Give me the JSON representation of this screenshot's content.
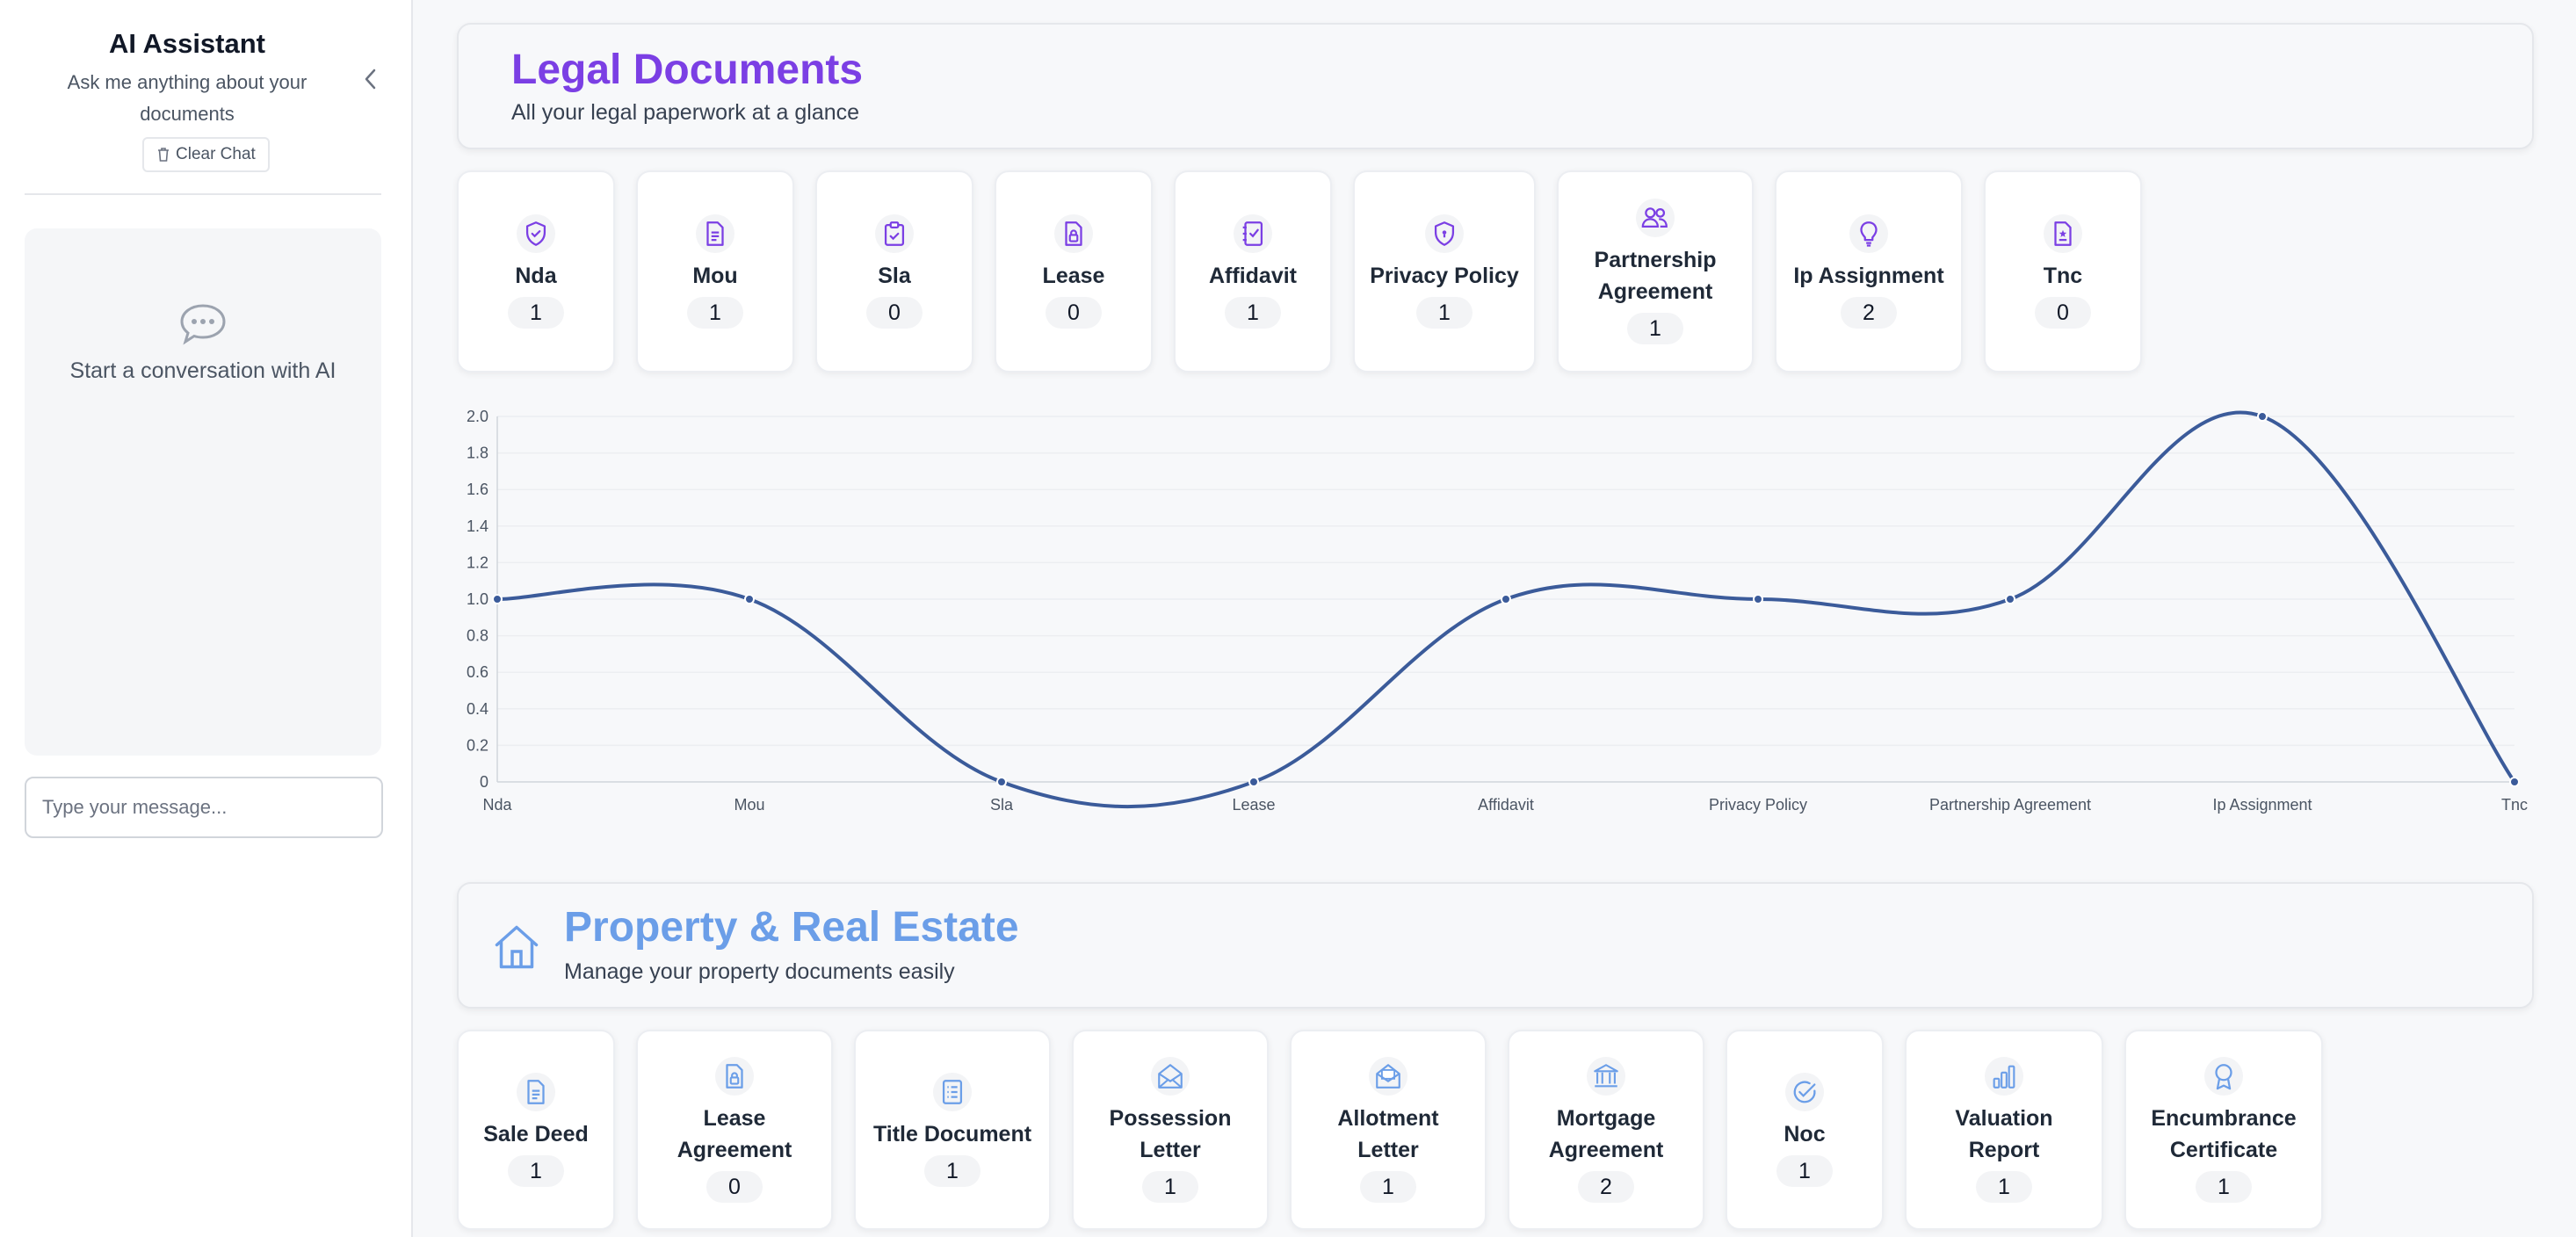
{
  "sidebar": {
    "title": "AI Assistant",
    "subtitle": "Ask me anything about your documents",
    "clear_label": "Clear Chat",
    "empty_state": "Start a conversation with AI",
    "input_placeholder": "Type your message..."
  },
  "legal": {
    "title": "Legal Documents",
    "subtitle": "All your legal paperwork at a glance",
    "accent": "#7b3fe4",
    "cards": [
      {
        "label": "Nda",
        "count": "1",
        "icon": "shield-check-icon"
      },
      {
        "label": "Mou",
        "count": "1",
        "icon": "document-text-icon"
      },
      {
        "label": "Sla",
        "count": "0",
        "icon": "clipboard-check-icon"
      },
      {
        "label": "Lease",
        "count": "0",
        "icon": "document-lock-icon"
      },
      {
        "label": "Affidavit",
        "count": "1",
        "icon": "notebook-check-icon"
      },
      {
        "label": "Privacy Policy",
        "count": "1",
        "icon": "shield-lock-icon"
      },
      {
        "label": "Partnership Agreement",
        "count": "1",
        "icon": "users-icon"
      },
      {
        "label": "Ip Assignment",
        "count": "2",
        "icon": "lightbulb-icon"
      },
      {
        "label": "Tnc",
        "count": "0",
        "icon": "document-star-icon"
      }
    ]
  },
  "chart_data": {
    "type": "line",
    "categories": [
      "Nda",
      "Mou",
      "Sla",
      "Lease",
      "Affidavit",
      "Privacy Policy",
      "Partnership Agreement",
      "Ip Assignment",
      "Tnc"
    ],
    "series": [
      {
        "values": [
          1,
          1,
          0,
          0,
          1,
          1,
          1,
          2,
          0
        ]
      }
    ],
    "yticks": [
      "0",
      "0.2",
      "0.4",
      "0.6",
      "0.8",
      "1.0",
      "1.2",
      "1.4",
      "1.6",
      "1.8",
      "2.0"
    ],
    "ylim": [
      0,
      2
    ],
    "grid": true,
    "color": "#3b5b9a"
  },
  "property": {
    "title": "Property & Real Estate",
    "subtitle": "Manage your property documents easily",
    "accent": "#6b9ee8",
    "icon": "house-icon",
    "cards": [
      {
        "label": "Sale Deed",
        "count": "1",
        "icon": "document-text-icon"
      },
      {
        "label": "Lease Agreement",
        "count": "0",
        "icon": "document-lock-icon"
      },
      {
        "label": "Title Document",
        "count": "1",
        "icon": "list-document-icon"
      },
      {
        "label": "Possession Letter",
        "count": "1",
        "icon": "envelope-open-icon"
      },
      {
        "label": "Allotment Letter",
        "count": "1",
        "icon": "envelope-letter-icon"
      },
      {
        "label": "Mortgage Agreement",
        "count": "2",
        "icon": "bank-icon"
      },
      {
        "label": "Noc",
        "count": "1",
        "icon": "check-circle-icon"
      },
      {
        "label": "Valuation Report",
        "count": "1",
        "icon": "bar-chart-icon"
      },
      {
        "label": "Encumbrance Certificate",
        "count": "1",
        "icon": "award-icon"
      }
    ]
  }
}
